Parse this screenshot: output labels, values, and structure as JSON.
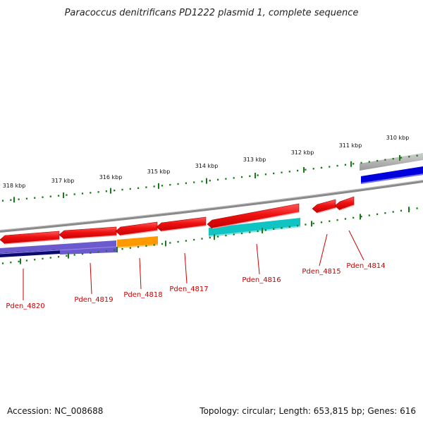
{
  "title": "Paracoccus denitrificans PD1222 plasmid 1, complete sequence",
  "footer": {
    "accession": "Accession: NC_008688",
    "topology": "Topology: circular; Length: 653,815 bp; Genes: 616"
  },
  "ruler": {
    "unit": "kbp",
    "labels": [
      "318 kbp",
      "317 kbp",
      "316 kbp",
      "315 kbp",
      "314 kbp",
      "313 kbp",
      "312 kbp",
      "311 kbp",
      "310 kbp"
    ]
  },
  "genes": [
    {
      "name": "Pden_4820",
      "color": "#ee1111",
      "strand": "reverse"
    },
    {
      "name": "Pden_4819",
      "color": "#ee1111",
      "strand": "reverse"
    },
    {
      "name": "Pden_4818",
      "color": "#ee1111",
      "strand": "reverse"
    },
    {
      "name": "Pden_4817",
      "color": "#ee1111",
      "strand": "reverse"
    },
    {
      "name": "Pden_4816",
      "color": "#ee1111",
      "strand": "reverse"
    },
    {
      "name": "Pden_4815",
      "color": "#ee1111",
      "strand": "reverse"
    },
    {
      "name": "Pden_4814",
      "color": "#ee1111",
      "strand": "reverse"
    }
  ],
  "colors": {
    "backbone": "#888888",
    "ticks": "#1a7a1a",
    "label_red": "#cc0000",
    "blue_track": "#0000dd",
    "navy_track": "#0a0a6e",
    "purple_track": "#6a5acd",
    "orange_track": "#ff9900",
    "cyan_track": "#11c4c4",
    "grey_track": "#b0b0b0"
  }
}
